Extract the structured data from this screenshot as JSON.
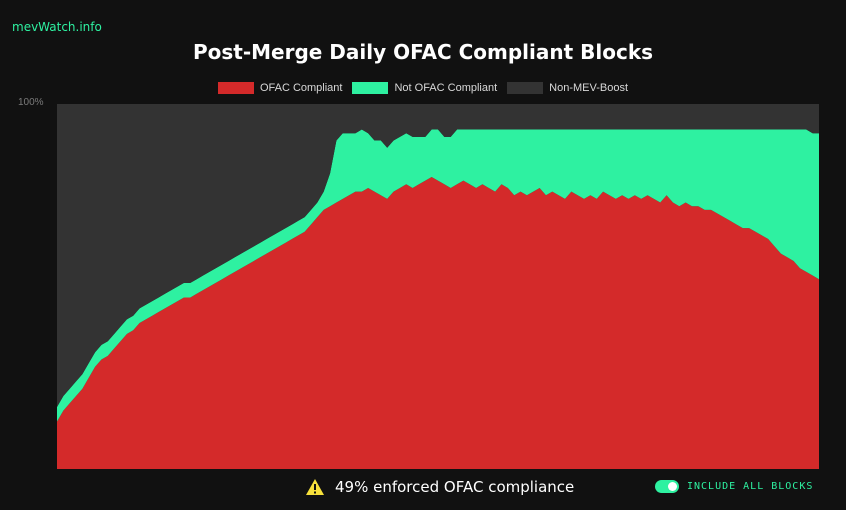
{
  "brand": "mevWatch.info",
  "colors": {
    "compliant": "#d42a2a",
    "not_compliant": "#2ef1a1",
    "non_mev_boost": "#333333",
    "accent": "#2ef1a1",
    "warning": "#f7e13c"
  },
  "footer": {
    "warning_icon": "warning-triangle-icon",
    "summary": "49% enforced OFAC compliance",
    "toggle_label": "INCLUDE ALL BLOCKS",
    "toggle_on": true
  },
  "chart_data": {
    "type": "area",
    "stacked": true,
    "title": "Post-Merge Daily OFAC Compliant Blocks",
    "ytick_label": "100%",
    "ylim": [
      0,
      100
    ],
    "grid": false,
    "legend_position": "top-center",
    "series": [
      {
        "name": "OFAC Compliant",
        "values": [
          13,
          16,
          18,
          20,
          22,
          25,
          28,
          30,
          31,
          33,
          35,
          37,
          38,
          40,
          41,
          42,
          43,
          44,
          45,
          46,
          47,
          47,
          48,
          49,
          50,
          51,
          52,
          53,
          54,
          55,
          56,
          57,
          58,
          59,
          60,
          61,
          62,
          63,
          64,
          65,
          67,
          69,
          71,
          72,
          73,
          74,
          75,
          76,
          76,
          77,
          76,
          75,
          74,
          76,
          77,
          78,
          77,
          78,
          79,
          80,
          79,
          78,
          77,
          78,
          79,
          78,
          77,
          78,
          77,
          76,
          78,
          77,
          75,
          76,
          75,
          76,
          77,
          75,
          76,
          75,
          74,
          76,
          75,
          74,
          75,
          74,
          76,
          75,
          74,
          75,
          74,
          75,
          74,
          75,
          74,
          73,
          75,
          73,
          72,
          73,
          72,
          72,
          71,
          71,
          70,
          69,
          68,
          67,
          66,
          66,
          65,
          64,
          63,
          61,
          59,
          58,
          57,
          55,
          54,
          53,
          52
        ]
      },
      {
        "name": "Not OFAC Compliant",
        "values": [
          4,
          4,
          4,
          4,
          4,
          4,
          4,
          4,
          4,
          4,
          4,
          4,
          4,
          4,
          4,
          4,
          4,
          4,
          4,
          4,
          4,
          4,
          4,
          4,
          4,
          4,
          4,
          4,
          4,
          4,
          4,
          4,
          4,
          4,
          4,
          4,
          4,
          4,
          4,
          4,
          4,
          4,
          5,
          9,
          17,
          18,
          17,
          16,
          17,
          15,
          14,
          15,
          14,
          14,
          14,
          14,
          14,
          13,
          12,
          13,
          14,
          13,
          14,
          15,
          14,
          15,
          16,
          15,
          16,
          17,
          15,
          16,
          18,
          17,
          18,
          17,
          16,
          18,
          17,
          18,
          19,
          17,
          18,
          19,
          18,
          19,
          17,
          18,
          19,
          18,
          19,
          18,
          19,
          18,
          19,
          20,
          18,
          20,
          21,
          20,
          21,
          21,
          22,
          22,
          23,
          24,
          25,
          26,
          27,
          27,
          28,
          29,
          30,
          32,
          34,
          35,
          36,
          38,
          39,
          39,
          40
        ]
      },
      {
        "name": "Non-MEV-Boost",
        "values": [
          83,
          80,
          78,
          76,
          74,
          71,
          68,
          66,
          65,
          63,
          61,
          59,
          58,
          56,
          55,
          54,
          53,
          52,
          51,
          50,
          49,
          49,
          48,
          47,
          46,
          45,
          44,
          43,
          42,
          41,
          40,
          39,
          38,
          37,
          36,
          35,
          34,
          33,
          32,
          31,
          29,
          27,
          24,
          19,
          10,
          8,
          8,
          8,
          7,
          8,
          10,
          10,
          12,
          10,
          9,
          8,
          9,
          9,
          9,
          7,
          7,
          9,
          9,
          7,
          7,
          7,
          7,
          7,
          7,
          7,
          7,
          7,
          7,
          7,
          7,
          7,
          7,
          7,
          7,
          7,
          7,
          7,
          7,
          7,
          7,
          7,
          7,
          7,
          7,
          7,
          7,
          7,
          7,
          7,
          7,
          7,
          7,
          7,
          7,
          7,
          7,
          7,
          7,
          7,
          7,
          7,
          7,
          7,
          7,
          7,
          7,
          7,
          7,
          7,
          7,
          7,
          7,
          7,
          7,
          8,
          8
        ]
      }
    ]
  }
}
